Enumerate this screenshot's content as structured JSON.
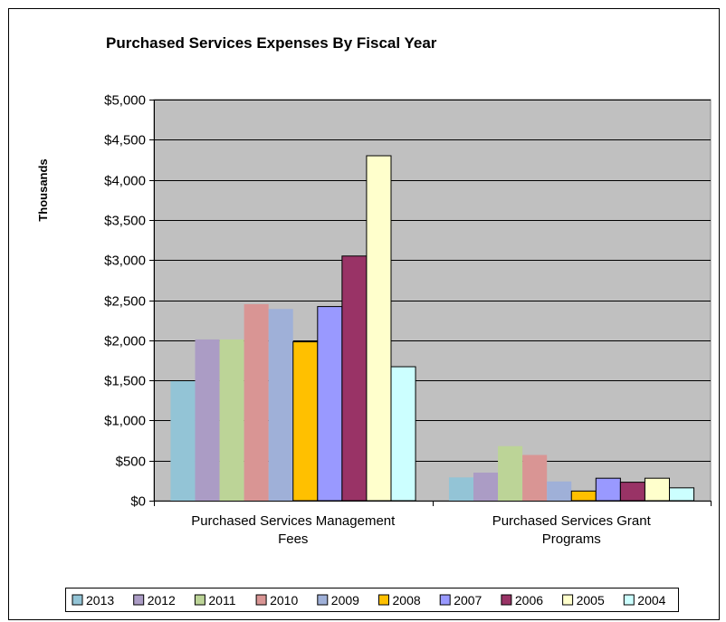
{
  "chart_data": {
    "type": "bar",
    "title": "Purchased Services Expenses By Fiscal Year",
    "xlabel": "",
    "ylabel": "Thousands",
    "ylim": [
      0,
      5000
    ],
    "yticks": [
      "$0",
      "$500",
      "$1,000",
      "$1,500",
      "$2,000",
      "$2,500",
      "$3,000",
      "$3,500",
      "$4,000",
      "$4,500",
      "$5,000"
    ],
    "ytick_values": [
      0,
      500,
      1000,
      1500,
      2000,
      2500,
      3000,
      3500,
      4000,
      4500,
      5000
    ],
    "grid": true,
    "legend_position": "bottom",
    "plot_background": "#c0c0c0",
    "categories": [
      [
        "Purchased Services Management",
        "Fees"
      ],
      [
        "Purchased Services Grant",
        "Programs"
      ]
    ],
    "series": [
      {
        "name": "2013",
        "color": "#93c4d6",
        "values": [
          1490,
          290
        ]
      },
      {
        "name": "2012",
        "color": "#ab9cc5",
        "values": [
          2010,
          350
        ]
      },
      {
        "name": "2011",
        "color": "#bcd497",
        "values": [
          2010,
          680
        ]
      },
      {
        "name": "2010",
        "color": "#d99594",
        "values": [
          2450,
          570
        ]
      },
      {
        "name": "2009",
        "color": "#9fb0d8",
        "values": [
          2390,
          240
        ]
      },
      {
        "name": "2008",
        "color": "#ffc000",
        "values": [
          1980,
          120
        ]
      },
      {
        "name": "2007",
        "color": "#9999ff",
        "values": [
          2420,
          280
        ]
      },
      {
        "name": "2006",
        "color": "#993366",
        "values": [
          3050,
          230
        ]
      },
      {
        "name": "2005",
        "color": "#ffffcc",
        "values": [
          4300,
          280
        ]
      },
      {
        "name": "2004",
        "color": "#ccffff",
        "values": [
          1670,
          160
        ]
      }
    ]
  }
}
